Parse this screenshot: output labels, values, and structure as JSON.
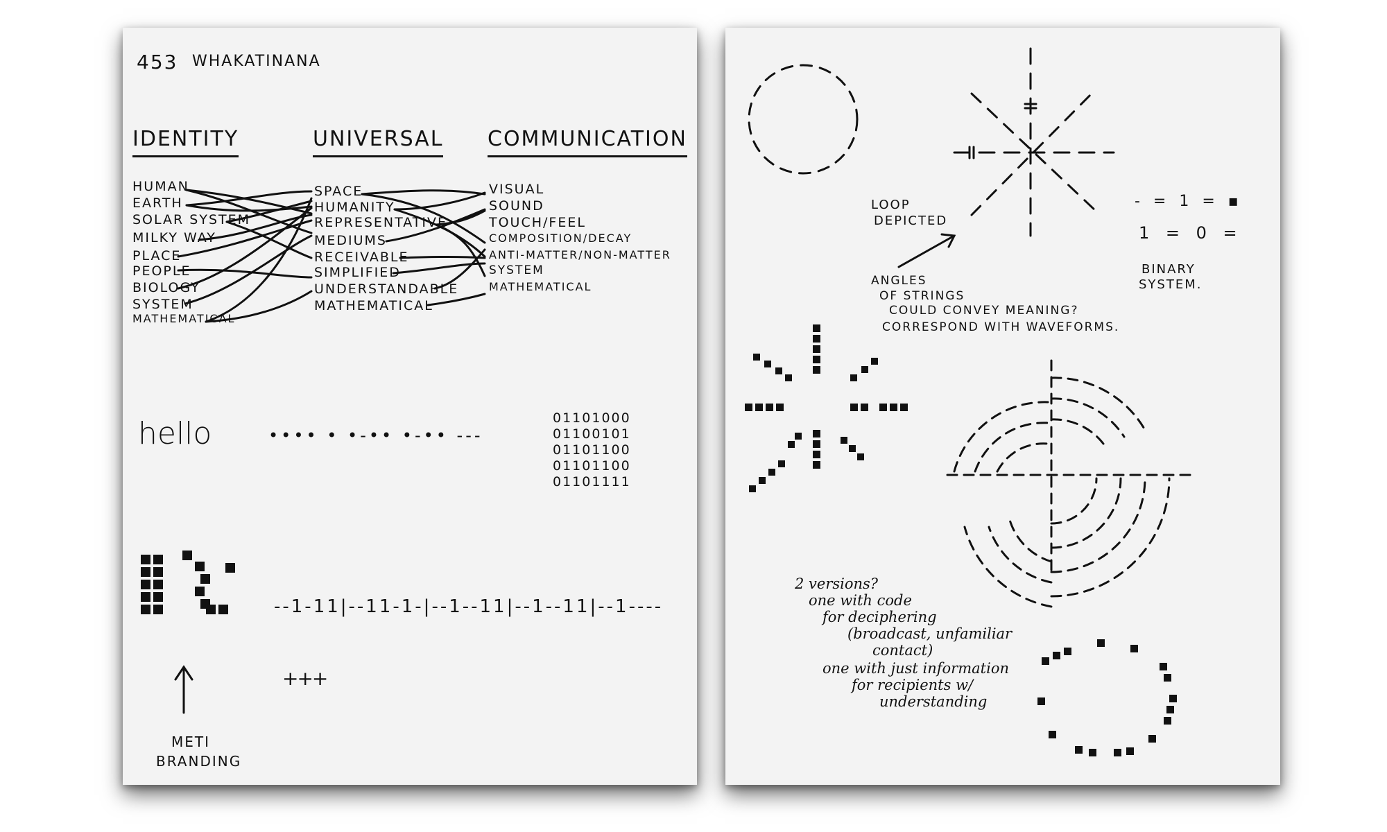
{
  "left_page": {
    "page_number": "453",
    "title": "WHAKATINANA",
    "headings": [
      "IDENTITY",
      "UNIVERSAL",
      "COMMUNICATION"
    ],
    "identity_terms": [
      "HUMAN",
      "EARTH",
      "SOLAR SYSTEM",
      "MILKY WAY",
      "PLACE",
      "PEOPLE",
      "BIOLOGY",
      "SYSTEM",
      "MATHEMATICAL"
    ],
    "universal_terms": [
      "SPACE",
      "HUMANITY",
      "REPRESENTATIVE",
      "MEDIUMS",
      "RECEIVABLE",
      "SIMPLIFIED",
      "UNDERSTANDABLE",
      "MATHEMATICAL"
    ],
    "communication_terms": [
      "VISUAL",
      "SOUND",
      "TOUCH/FEEL",
      "COMPOSITION/DECAY",
      "ANTI-MATTER/NON-MATTER",
      "SYSTEM",
      "MATHEMATICAL"
    ],
    "hello_word": "hello",
    "morse": "•••• • •-•• •-•• ---",
    "binary": [
      "01101000",
      "01100101",
      "01101100",
      "01101100",
      "01101111"
    ],
    "string_code": "--1-11|--11-1-|--1--11|--1--11|--1----",
    "tally": "+++",
    "meti_label": [
      "METI",
      "BRANDING"
    ]
  },
  "right_page": {
    "loop_label": [
      "LOOP",
      "DEPICTED"
    ],
    "angles_note": [
      "ANGLES",
      "OF STRINGS",
      "COULD CONVEY MEANING?",
      "CORRESPOND WITH WAVEFORMS."
    ],
    "binary_row1": "- = 1 = ▪",
    "binary_row2": "1 = 0 =",
    "binary_label": [
      "BINARY",
      "SYSTEM."
    ],
    "versions_note": [
      "2 versions?",
      "one with code",
      "for deciphering",
      "(broadcast, unfamiliar",
      "contact)",
      "one with just information",
      "for recipients w/",
      "understanding"
    ]
  }
}
